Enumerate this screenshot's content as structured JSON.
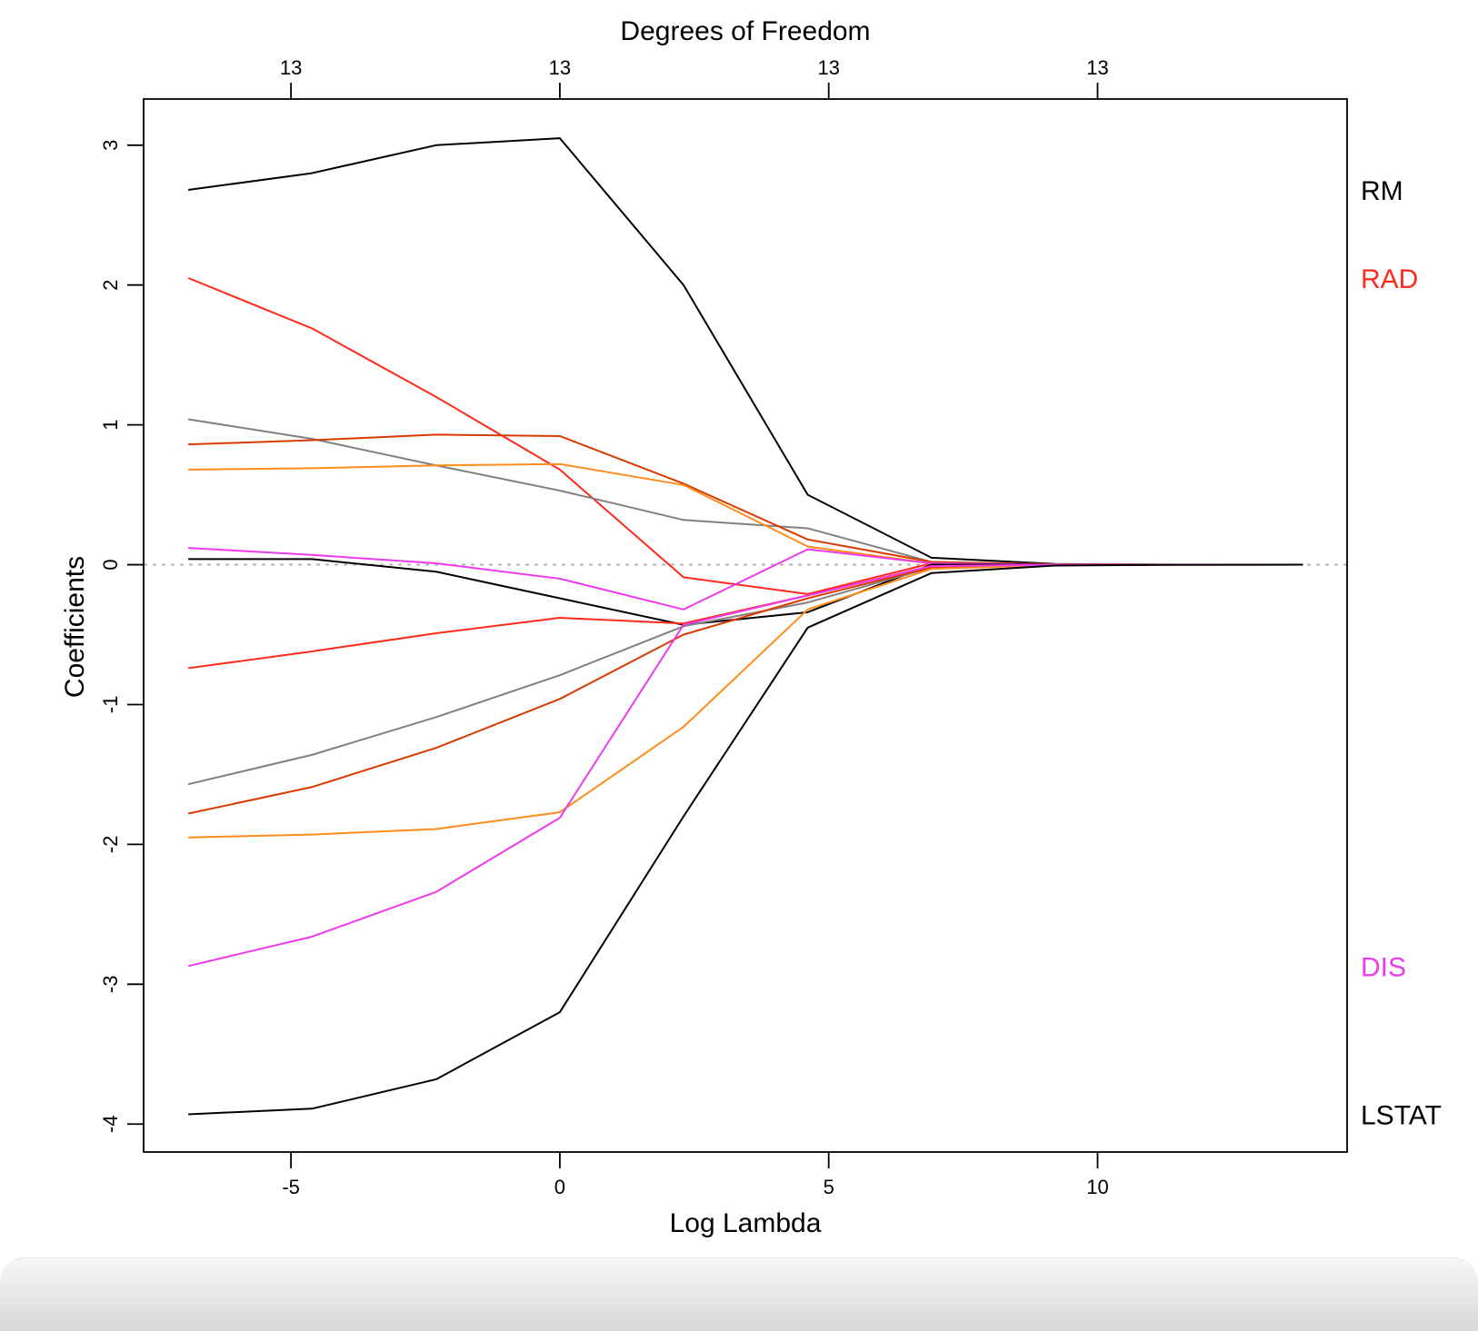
{
  "chart_data": {
    "type": "line",
    "title": "",
    "xlabel": "Log Lambda",
    "ylabel": "Coefficients",
    "top_axis_label": "Degrees of Freedom",
    "xlim": [
      -7.74,
      14.64
    ],
    "ylim": [
      -4.2,
      3.33
    ],
    "x_ticks": [
      -5,
      0,
      5,
      10
    ],
    "x_tick_labels": [
      "-5",
      "0",
      "5",
      "10"
    ],
    "y_ticks": [
      -4,
      -3,
      -2,
      -1,
      0,
      1,
      2,
      3
    ],
    "y_tick_labels": [
      "-4",
      "-3",
      "-2",
      "-1",
      "0",
      "1",
      "2",
      "3"
    ],
    "top_ticks": [
      -5,
      0,
      5,
      10
    ],
    "top_tick_labels": [
      "13",
      "13",
      "13",
      "13"
    ],
    "zero_line": {
      "y": 0,
      "color": "#b3b3b3",
      "style": "dotted"
    },
    "grid": false,
    "x": [
      -6.91,
      -4.61,
      -2.3,
      0,
      2.3,
      4.61,
      6.91,
      9.21,
      11.51,
      13.82
    ],
    "series": [
      {
        "color": "#000000",
        "label": "RM",
        "values": [
          2.68,
          2.8,
          3.0,
          3.05,
          2.0,
          0.5,
          0.05,
          0.005,
          0.0005,
          0.0
        ]
      },
      {
        "color": "#ff2a1a",
        "label": "RAD",
        "values": [
          2.05,
          1.69,
          1.2,
          0.68,
          -0.09,
          -0.21,
          0.01,
          0.001,
          0.0001,
          0.0
        ]
      },
      {
        "color": "#808080",
        "values": [
          1.04,
          0.9,
          0.71,
          0.53,
          0.32,
          0.26,
          0.02,
          0.002,
          0.0002,
          0.0
        ]
      },
      {
        "color": "#d93a00",
        "values": [
          0.86,
          0.89,
          0.93,
          0.92,
          0.58,
          0.18,
          0.02,
          0.002,
          0.0002,
          0.0
        ]
      },
      {
        "color": "#ff8c1a",
        "values": [
          0.68,
          0.69,
          0.71,
          0.72,
          0.57,
          0.13,
          0.01,
          0.001,
          0.0001,
          0.0
        ]
      },
      {
        "color": "#ee3aee",
        "values": [
          0.12,
          0.07,
          0.01,
          -0.1,
          -0.32,
          0.11,
          0.01,
          0.001,
          0.0001,
          0.0
        ]
      },
      {
        "color": "#000000",
        "values": [
          0.04,
          0.04,
          -0.05,
          -0.24,
          -0.43,
          -0.34,
          0.0,
          0.0,
          0.0,
          0.0
        ]
      },
      {
        "color": "#ff2a1a",
        "values": [
          -0.74,
          -0.62,
          -0.49,
          -0.38,
          -0.42,
          -0.22,
          -0.01,
          -0.001,
          -0.0001,
          0.0
        ]
      },
      {
        "color": "#808080",
        "values": [
          -1.57,
          -1.36,
          -1.09,
          -0.79,
          -0.44,
          -0.27,
          -0.02,
          -0.002,
          -0.0002,
          0.0
        ]
      },
      {
        "color": "#d93a00",
        "values": [
          -1.78,
          -1.59,
          -1.31,
          -0.96,
          -0.5,
          -0.24,
          -0.02,
          -0.002,
          -0.0002,
          0.0
        ]
      },
      {
        "color": "#ff8c1a",
        "values": [
          -1.95,
          -1.93,
          -1.89,
          -1.77,
          -1.16,
          -0.32,
          -0.03,
          -0.003,
          -0.0003,
          0.0
        ]
      },
      {
        "color": "#ee3aee",
        "label": "DIS",
        "values": [
          -2.87,
          -2.66,
          -2.34,
          -1.81,
          -0.43,
          -0.22,
          -0.01,
          -0.001,
          -0.0001,
          0.0
        ]
      },
      {
        "color": "#000000",
        "label": "LSTAT",
        "values": [
          -3.93,
          -3.89,
          -3.68,
          -3.2,
          -1.8,
          -0.45,
          -0.06,
          -0.006,
          -0.0006,
          0.0
        ]
      }
    ]
  }
}
